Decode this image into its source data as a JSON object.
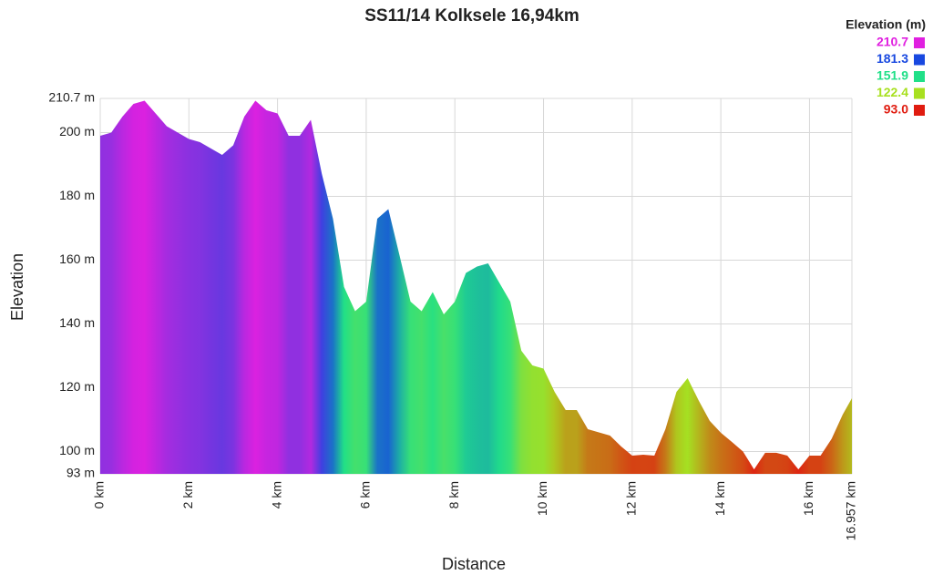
{
  "chart_data": {
    "type": "area",
    "title": "SS11/14 Kolksele 16,94km",
    "x_label": "Distance",
    "y_label": "Elevation",
    "legend_title": "Elevation (m)",
    "x": [
      0,
      0.25,
      0.5,
      0.75,
      1.0,
      1.25,
      1.5,
      1.75,
      2.0,
      2.25,
      2.5,
      2.75,
      3.0,
      3.25,
      3.5,
      3.75,
      4.0,
      4.25,
      4.5,
      4.75,
      5.0,
      5.25,
      5.5,
      5.75,
      6.0,
      6.25,
      6.5,
      6.75,
      7.0,
      7.25,
      7.5,
      7.75,
      8.0,
      8.25,
      8.5,
      8.75,
      9.0,
      9.25,
      9.5,
      9.75,
      10.0,
      10.25,
      10.5,
      10.75,
      11.0,
      11.25,
      11.5,
      11.75,
      12.0,
      12.25,
      12.5,
      12.75,
      13.0,
      13.25,
      13.5,
      13.75,
      14.0,
      14.25,
      14.5,
      14.75,
      15.0,
      15.25,
      15.5,
      15.75,
      16.0,
      16.25,
      16.5,
      16.75,
      16.957
    ],
    "values": [
      199,
      200,
      205,
      209,
      210,
      206,
      202,
      200,
      198,
      197,
      195,
      193,
      196,
      205,
      210,
      207,
      206,
      199,
      199,
      204,
      187,
      173,
      151.6,
      144,
      147,
      173,
      176,
      161.6,
      147,
      144,
      150,
      143,
      147,
      156,
      158,
      159,
      153,
      147,
      131.6,
      127,
      126,
      118.7,
      113,
      113,
      107,
      106,
      105,
      101.6,
      98.7,
      99,
      98.7,
      107,
      118.7,
      123,
      116,
      109.6,
      105.9,
      103,
      100,
      94.4,
      99.6,
      99.6,
      98.7,
      94.4,
      98.7,
      98.7,
      104,
      111.6,
      116.7
    ],
    "xlim": [
      0,
      16.957
    ],
    "xticks": [
      {
        "value": 0,
        "label": "0 km"
      },
      {
        "value": 2,
        "label": "2 km"
      },
      {
        "value": 4,
        "label": "4 km"
      },
      {
        "value": 6,
        "label": "6 km"
      },
      {
        "value": 8,
        "label": "8 km"
      },
      {
        "value": 10,
        "label": "10 km"
      },
      {
        "value": 12,
        "label": "12 km"
      },
      {
        "value": 14,
        "label": "14 km"
      },
      {
        "value": 16,
        "label": "16 km"
      },
      {
        "value": 16.957,
        "label": "16.957 km"
      }
    ],
    "ylim": [
      93,
      210.7
    ],
    "yticks": [
      {
        "value": 93,
        "label": "93 m"
      },
      {
        "value": 100,
        "label": "100 m"
      },
      {
        "value": 120,
        "label": "120 m"
      },
      {
        "value": 140,
        "label": "140 m"
      },
      {
        "value": 160,
        "label": "160 m"
      },
      {
        "value": 180,
        "label": "180 m"
      },
      {
        "value": 200,
        "label": "200 m"
      },
      {
        "value": 210.7,
        "label": "210.7 m"
      }
    ],
    "grid": true,
    "color_scale": [
      {
        "value": 210.7,
        "color": "#e020e0"
      },
      {
        "value": 181.3,
        "color": "#1848e0"
      },
      {
        "value": 151.9,
        "color": "#20e088"
      },
      {
        "value": 122.4,
        "color": "#a8e020"
      },
      {
        "value": {
          "value": 93,
          "label": "93.0"
        },
        "color": "#e01c10"
      }
    ]
  }
}
